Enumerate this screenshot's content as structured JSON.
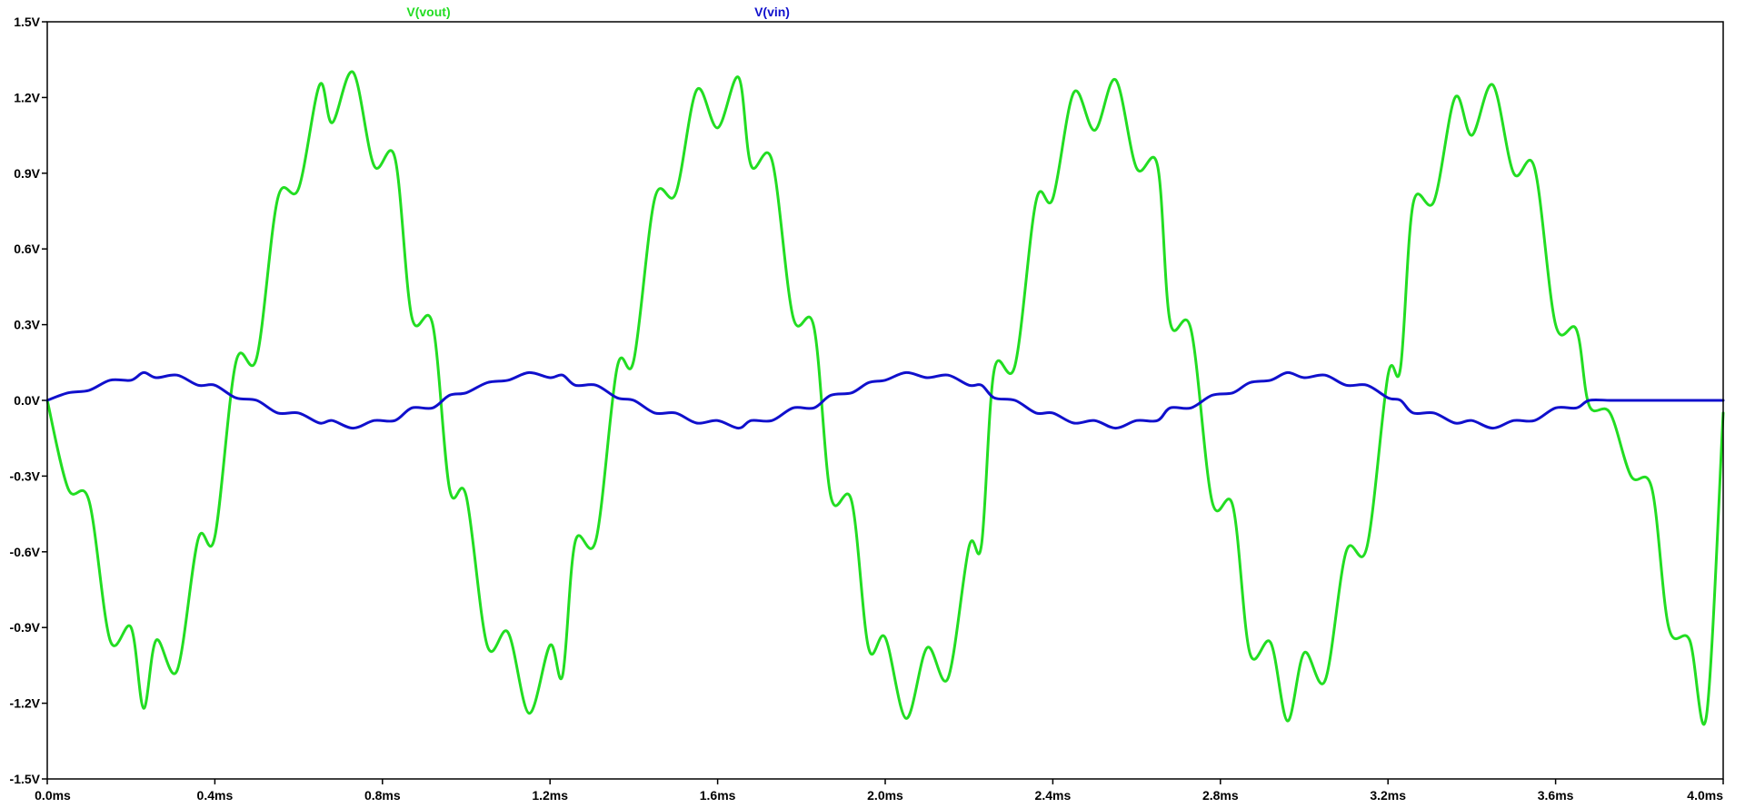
{
  "chart_data": {
    "type": "line",
    "x_unit": "ms",
    "y_unit": "V",
    "xlim": [
      0.0,
      4.0
    ],
    "ylim": [
      -1.5,
      1.5
    ],
    "x_ticks": [
      "0.0ms",
      "0.4ms",
      "0.8ms",
      "1.2ms",
      "1.6ms",
      "2.0ms",
      "2.4ms",
      "2.8ms",
      "3.2ms",
      "3.6ms",
      "4.0ms"
    ],
    "y_ticks": [
      "1.5V",
      "1.2V",
      "0.9V",
      "0.6V",
      "0.3V",
      "0.0V",
      "-0.3V",
      "-0.6V",
      "-0.9V",
      "-1.2V",
      "-1.5V"
    ],
    "grid": false,
    "legend_position": "top",
    "series": [
      {
        "name": "V(vout)",
        "color": "#22dd22",
        "x": [
          0.0,
          0.05,
          0.1,
          0.15,
          0.2,
          0.23,
          0.26,
          0.31,
          0.36,
          0.4,
          0.45,
          0.5,
          0.55,
          0.6,
          0.65,
          0.68,
          0.73,
          0.78,
          0.83,
          0.87,
          0.92,
          0.96,
          1.0,
          1.05,
          1.1,
          1.15,
          1.2,
          1.23,
          1.26,
          1.31,
          1.36,
          1.4,
          1.45,
          1.5,
          1.55,
          1.6,
          1.65,
          1.68,
          1.73,
          1.78,
          1.83,
          1.87,
          1.92,
          1.96,
          2.0,
          2.05,
          2.1,
          2.15,
          2.2,
          2.23,
          2.26,
          2.31,
          2.36,
          2.4,
          2.45,
          2.5,
          2.55,
          2.6,
          2.65,
          2.68,
          2.73,
          2.78,
          2.83,
          2.87,
          2.92,
          2.96,
          3.0,
          3.05,
          3.1,
          3.15,
          3.2,
          3.23,
          3.26,
          3.31,
          3.36,
          3.4,
          3.45,
          3.5,
          3.55,
          3.6,
          3.65,
          3.68,
          3.73,
          3.78,
          3.83,
          3.87,
          3.92,
          3.96,
          4.0
        ],
        "y": [
          0.0,
          -0.35,
          -0.4,
          -0.95,
          -0.9,
          -1.22,
          -0.95,
          -1.07,
          -0.55,
          -0.54,
          0.15,
          0.17,
          0.8,
          0.84,
          1.25,
          1.1,
          1.3,
          0.93,
          0.96,
          0.33,
          0.3,
          -0.35,
          -0.38,
          -0.97,
          -0.92,
          -1.24,
          -0.97,
          -1.09,
          -0.56,
          -0.55,
          0.13,
          0.16,
          0.8,
          0.82,
          1.23,
          1.08,
          1.28,
          0.93,
          0.95,
          0.33,
          0.29,
          -0.38,
          -0.4,
          -0.98,
          -0.94,
          -1.26,
          -0.98,
          -1.1,
          -0.58,
          -0.57,
          0.12,
          0.14,
          0.79,
          0.8,
          1.22,
          1.07,
          1.27,
          0.92,
          0.93,
          0.31,
          0.28,
          -0.4,
          -0.42,
          -1.0,
          -0.96,
          -1.27,
          -1.0,
          -1.11,
          -0.6,
          -0.58,
          0.1,
          0.13,
          0.78,
          0.79,
          1.2,
          1.05,
          1.25,
          0.9,
          0.92,
          0.3,
          0.28,
          -0.02,
          -0.05,
          -0.3,
          -0.35,
          -0.9,
          -0.95,
          -1.25,
          -0.05
        ]
      },
      {
        "name": "V(vin)",
        "color": "#1010cc",
        "x": [
          0.0,
          0.05,
          0.1,
          0.15,
          0.2,
          0.23,
          0.26,
          0.31,
          0.36,
          0.4,
          0.45,
          0.5,
          0.55,
          0.6,
          0.65,
          0.68,
          0.73,
          0.78,
          0.83,
          0.87,
          0.92,
          0.96,
          1.0,
          1.05,
          1.1,
          1.15,
          1.2,
          1.23,
          1.26,
          1.31,
          1.36,
          1.4,
          1.45,
          1.5,
          1.55,
          1.6,
          1.65,
          1.68,
          1.73,
          1.78,
          1.83,
          1.87,
          1.92,
          1.96,
          2.0,
          2.05,
          2.1,
          2.15,
          2.2,
          2.23,
          2.26,
          2.31,
          2.36,
          2.4,
          2.45,
          2.5,
          2.55,
          2.6,
          2.65,
          2.68,
          2.73,
          2.78,
          2.83,
          2.87,
          2.92,
          2.96,
          3.0,
          3.05,
          3.1,
          3.15,
          3.2,
          3.23,
          3.26,
          3.31,
          3.36,
          3.4,
          3.45,
          3.5,
          3.55,
          3.6,
          3.65,
          3.68,
          3.73,
          3.78,
          3.83,
          3.87,
          3.92,
          3.96,
          4.0
        ],
        "y": [
          0.0,
          0.03,
          0.04,
          0.08,
          0.08,
          0.11,
          0.09,
          0.1,
          0.06,
          0.06,
          0.01,
          0.0,
          -0.05,
          -0.05,
          -0.09,
          -0.08,
          -0.11,
          -0.08,
          -0.08,
          -0.03,
          -0.03,
          0.02,
          0.03,
          0.07,
          0.08,
          0.11,
          0.09,
          0.1,
          0.06,
          0.06,
          0.01,
          0.0,
          -0.05,
          -0.05,
          -0.09,
          -0.08,
          -0.11,
          -0.08,
          -0.08,
          -0.03,
          -0.03,
          0.02,
          0.03,
          0.07,
          0.08,
          0.11,
          0.09,
          0.1,
          0.06,
          0.06,
          0.01,
          0.0,
          -0.05,
          -0.05,
          -0.09,
          -0.08,
          -0.11,
          -0.08,
          -0.08,
          -0.03,
          -0.03,
          0.02,
          0.03,
          0.07,
          0.08,
          0.11,
          0.09,
          0.1,
          0.06,
          0.06,
          0.01,
          0.0,
          -0.05,
          -0.05,
          -0.09,
          -0.08,
          -0.11,
          -0.08,
          -0.08,
          -0.03,
          -0.03,
          0.0,
          0.0,
          0.0,
          0.0,
          0.0,
          0.0,
          0.0,
          0.0
        ]
      }
    ]
  }
}
